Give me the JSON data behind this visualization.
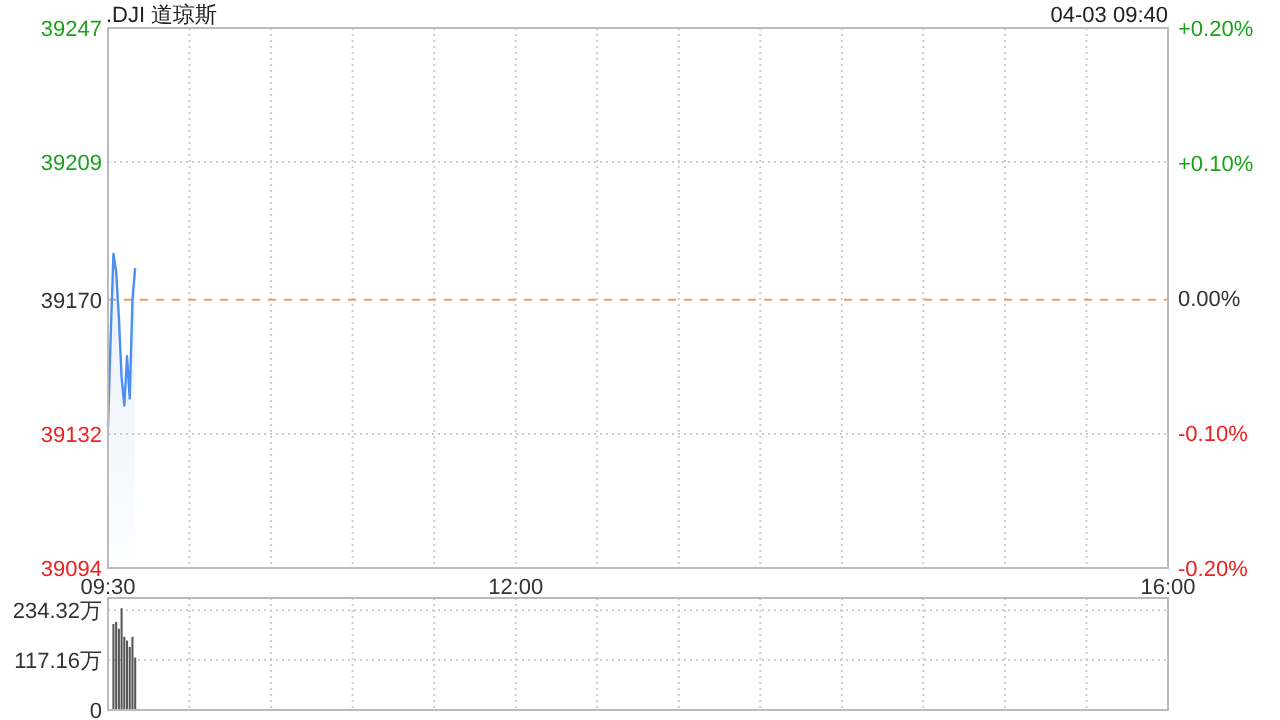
{
  "chart_data": [
    {
      "type": "area",
      "title": ".DJI 道琼斯",
      "annotations": [
        "04-03 09:40"
      ],
      "x": [
        9.5,
        9.5167,
        9.5333,
        9.55,
        9.5667,
        9.5833,
        9.6,
        9.6167,
        9.6333,
        9.65,
        9.6667
      ],
      "values": [
        39134,
        39160,
        39183,
        39178,
        39165,
        39148,
        39140,
        39154,
        39142,
        39170,
        39179
      ],
      "color": "#4d8ff0",
      "xlim": [
        9.5,
        16
      ],
      "xticks": [
        {
          "value": 9.5,
          "label": "09:30"
        },
        {
          "value": 10,
          "label": null
        },
        {
          "value": 10.5,
          "label": null
        },
        {
          "value": 11,
          "label": null
        },
        {
          "value": 11.5,
          "label": null
        },
        {
          "value": 12,
          "label": "12:00"
        },
        {
          "value": 12.5,
          "label": null
        },
        {
          "value": 13,
          "label": null
        },
        {
          "value": 13.5,
          "label": null
        },
        {
          "value": 14,
          "label": null
        },
        {
          "value": 14.5,
          "label": null
        },
        {
          "value": 15,
          "label": null
        },
        {
          "value": 15.5,
          "label": null
        },
        {
          "value": 16,
          "label": "16:00"
        }
      ],
      "ylim": [
        39094,
        39247
      ],
      "yticks": [
        39094,
        39132,
        39170,
        39209,
        39247
      ],
      "y2lim": [
        -0.2,
        0.2
      ],
      "y2ticks": [
        {
          "value": -0.2,
          "label": "-0.20%"
        },
        {
          "value": -0.1,
          "label": "-0.10%"
        },
        {
          "value": 0,
          "label": "0.00%"
        },
        {
          "value": 0.1,
          "label": "+0.10%"
        },
        {
          "value": 0.2,
          "label": "+0.20%"
        }
      ],
      "ref_lines": [
        {
          "axis": "y",
          "value": 39170,
          "color": "#f0a060",
          "line_style": "dashed"
        }
      ],
      "grid": true
    },
    {
      "type": "bar",
      "x": [
        9.5333,
        9.55,
        9.5667,
        9.5833,
        9.6,
        9.6167,
        9.6333,
        9.65,
        9.6667
      ],
      "values": [
        202,
        207,
        191,
        239,
        172,
        163,
        148,
        172,
        123
      ],
      "color": "#555555",
      "xlim": [
        9.5,
        16
      ],
      "xticks": [
        {
          "value": 9.5,
          "label": null
        },
        {
          "value": 10,
          "label": null
        },
        {
          "value": 10.5,
          "label": null
        },
        {
          "value": 11,
          "label": null
        },
        {
          "value": 11.5,
          "label": null
        },
        {
          "value": 12,
          "label": null
        },
        {
          "value": 12.5,
          "label": null
        },
        {
          "value": 13,
          "label": null
        },
        {
          "value": 13.5,
          "label": null
        },
        {
          "value": 14,
          "label": null
        },
        {
          "value": 14.5,
          "label": null
        },
        {
          "value": 15,
          "label": null
        },
        {
          "value": 15.5,
          "label": null
        },
        {
          "value": 16,
          "label": null
        }
      ],
      "ylim": [
        0,
        263
      ],
      "yticks": [
        0,
        {
          "value": 117.16,
          "label": "117.16万"
        },
        {
          "value": 234.32,
          "label": "234.32万"
        }
      ],
      "tick_labels": "y",
      "grid": true
    }
  ]
}
